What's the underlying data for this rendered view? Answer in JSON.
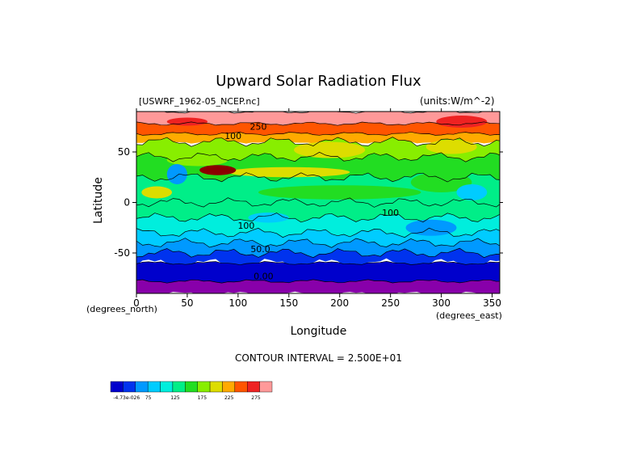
{
  "chart_data": {
    "type": "heatmap",
    "title": "Upward Solar Radiation Flux",
    "subtitle_left": "[USWRF_1962-05_NCEP.nc]",
    "subtitle_right": "(units:W/m^-2)",
    "xlabel": "Longitude",
    "ylabel": "Latitude",
    "x_unit_label": "(degrees_east)",
    "y_unit_label": "(degrees_north)",
    "xlim": [
      0,
      357.5
    ],
    "ylim": [
      -90,
      90
    ],
    "xticks": [
      0,
      50,
      100,
      150,
      200,
      250,
      300,
      350
    ],
    "yticks": [
      -50,
      0,
      50
    ],
    "contour_interval_text": "CONTOUR INTERVAL = 2.500E+01",
    "contour_labels": [
      {
        "text": "250",
        "lon": 120,
        "lat": 72
      },
      {
        "text": "100",
        "lon": 95,
        "lat": 63
      },
      {
        "text": "100",
        "lon": 250,
        "lat": -13
      },
      {
        "text": "100",
        "lon": 108,
        "lat": -26
      },
      {
        "text": "50.0",
        "lon": 122,
        "lat": -49
      },
      {
        "text": "0.00",
        "lon": 125,
        "lat": -76
      }
    ],
    "legend": {
      "colors": [
        "#0000cc",
        "#0033ee",
        "#0099ff",
        "#00ccff",
        "#00eedd",
        "#00ee88",
        "#22dd22",
        "#88ee00",
        "#dddd00",
        "#ffaa00",
        "#ff5500",
        "#ee2222",
        "#ff9999"
      ],
      "labels": [
        "-4.73e-026",
        "75",
        "125",
        "175",
        "225",
        "275"
      ]
    },
    "lat_bands": [
      {
        "from": 78,
        "to": 90,
        "color": "#ff9999"
      },
      {
        "from": 68,
        "to": 78,
        "color": "#ff5500"
      },
      {
        "from": 60,
        "to": 68,
        "color": "#ffaa00"
      },
      {
        "from": 45,
        "to": 60,
        "color": "#88ee00"
      },
      {
        "from": 25,
        "to": 45,
        "color": "#22dd22"
      },
      {
        "from": 0,
        "to": 25,
        "color": "#00ee88"
      },
      {
        "from": -15,
        "to": 0,
        "color": "#00ee88"
      },
      {
        "from": -30,
        "to": -15,
        "color": "#00eedd"
      },
      {
        "from": -40,
        "to": -30,
        "color": "#00ccff"
      },
      {
        "from": -50,
        "to": -40,
        "color": "#0099ff"
      },
      {
        "from": -60,
        "to": -50,
        "color": "#0033ee"
      },
      {
        "from": -78,
        "to": -60,
        "color": "#0000cc"
      },
      {
        "from": -90,
        "to": -78,
        "color": "#8800aa"
      }
    ],
    "patches": [
      {
        "lon": 190,
        "lat": 52,
        "rlon": 35,
        "rlat": 8,
        "color": "#dddd00"
      },
      {
        "lon": 310,
        "lat": 55,
        "rlon": 25,
        "rlat": 7,
        "color": "#dddd00"
      },
      {
        "lon": 60,
        "lat": 42,
        "rlon": 30,
        "rlat": 6,
        "color": "#88ee00"
      },
      {
        "lon": 150,
        "lat": 30,
        "rlon": 60,
        "rlat": 5,
        "color": "#dddd00"
      },
      {
        "lon": 20,
        "lat": 10,
        "rlon": 15,
        "rlat": 6,
        "color": "#dddd00"
      },
      {
        "lon": 200,
        "lat": 10,
        "rlon": 80,
        "rlat": 7,
        "color": "#22dd22"
      },
      {
        "lon": 300,
        "lat": 20,
        "rlon": 30,
        "rlat": 10,
        "color": "#22dd22"
      },
      {
        "lon": 80,
        "lat": 32,
        "rlon": 18,
        "rlat": 5,
        "color": "#8b0000"
      },
      {
        "lon": 40,
        "lat": 28,
        "rlon": 10,
        "rlat": 10,
        "color": "#0099ff"
      },
      {
        "lon": 330,
        "lat": 10,
        "rlon": 15,
        "rlat": 8,
        "color": "#00ccff"
      },
      {
        "lon": 290,
        "lat": -25,
        "rlon": 25,
        "rlat": 8,
        "color": "#0099ff"
      },
      {
        "lon": 130,
        "lat": -15,
        "rlon": 20,
        "rlat": 5,
        "color": "#00ccff"
      },
      {
        "lon": 320,
        "lat": 80,
        "rlon": 25,
        "rlat": 6,
        "color": "#ee2222"
      },
      {
        "lon": 50,
        "lat": 80,
        "rlon": 20,
        "rlat": 4,
        "color": "#ee2222"
      }
    ]
  }
}
